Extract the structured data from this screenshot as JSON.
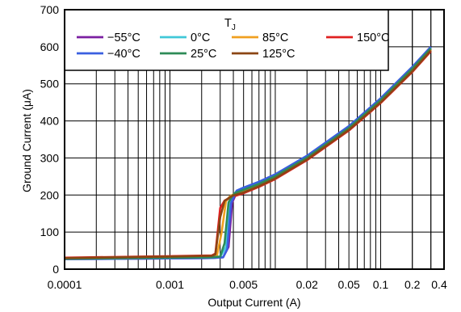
{
  "chart_data": {
    "type": "line",
    "xlabel": "Output Current (A)",
    "ylabel": "Ground Current (μA)",
    "xscale": "log",
    "xlim": [
      0.0001,
      0.4
    ],
    "ylim": [
      0,
      700
    ],
    "x_ticks": [
      {
        "value": 0.0001,
        "label": "0.0001"
      },
      {
        "value": 0.001,
        "label": "0.001"
      },
      {
        "value": 0.005,
        "label": "0.005"
      },
      {
        "value": 0.02,
        "label": "0.02"
      },
      {
        "value": 0.05,
        "label": "0.05"
      },
      {
        "value": 0.1,
        "label": "0.1"
      },
      {
        "value": 0.2,
        "label": "0.2"
      },
      {
        "value": 0.4,
        "label": "0.4"
      }
    ],
    "y_ticks": [
      {
        "value": 0,
        "label": "0"
      },
      {
        "value": 100,
        "label": "100"
      },
      {
        "value": 200,
        "label": "200"
      },
      {
        "value": 300,
        "label": "300"
      },
      {
        "value": 400,
        "label": "400"
      },
      {
        "value": 500,
        "label": "500"
      },
      {
        "value": 600,
        "label": "600"
      },
      {
        "value": 700,
        "label": "700"
      }
    ],
    "grid": true,
    "legend": {
      "title": "T",
      "title_sub": "J",
      "placement": "top-left-inside"
    },
    "series": [
      {
        "name": "−55°C",
        "color": "#7b1fa2",
        "points": [
          [
            0.0001,
            27
          ],
          [
            0.001,
            29
          ],
          [
            0.0025,
            30
          ],
          [
            0.0032,
            32
          ],
          [
            0.0036,
            60
          ],
          [
            0.0039,
            180
          ],
          [
            0.0042,
            200
          ],
          [
            0.0044,
            210
          ],
          [
            0.005,
            218
          ],
          [
            0.007,
            234
          ],
          [
            0.01,
            255
          ],
          [
            0.02,
            305
          ],
          [
            0.05,
            385
          ],
          [
            0.1,
            460
          ],
          [
            0.2,
            545
          ],
          [
            0.3,
            600
          ]
        ]
      },
      {
        "name": "0°C",
        "color": "#40c8d8",
        "points": [
          [
            0.0001,
            28
          ],
          [
            0.001,
            30
          ],
          [
            0.0025,
            31
          ],
          [
            0.003,
            33
          ],
          [
            0.0034,
            60
          ],
          [
            0.0037,
            180
          ],
          [
            0.004,
            200
          ],
          [
            0.0042,
            208
          ],
          [
            0.005,
            216
          ],
          [
            0.007,
            232
          ],
          [
            0.01,
            253
          ],
          [
            0.02,
            303
          ],
          [
            0.05,
            383
          ],
          [
            0.1,
            458
          ],
          [
            0.2,
            543
          ],
          [
            0.3,
            598
          ]
        ]
      },
      {
        "name": "85°C",
        "color": "#f0a020",
        "points": [
          [
            0.0001,
            30
          ],
          [
            0.001,
            33
          ],
          [
            0.0025,
            35
          ],
          [
            0.0028,
            38
          ],
          [
            0.0031,
            100
          ],
          [
            0.0034,
            183
          ],
          [
            0.0037,
            196
          ],
          [
            0.004,
            202
          ],
          [
            0.005,
            210
          ],
          [
            0.007,
            226
          ],
          [
            0.01,
            247
          ],
          [
            0.02,
            298
          ],
          [
            0.05,
            378
          ],
          [
            0.1,
            452
          ],
          [
            0.2,
            537
          ],
          [
            0.3,
            592
          ]
        ]
      },
      {
        "name": "150°C",
        "color": "#e02020",
        "points": [
          [
            0.0001,
            31
          ],
          [
            0.001,
            35
          ],
          [
            0.0025,
            37
          ],
          [
            0.0027,
            42
          ],
          [
            0.003,
            165
          ],
          [
            0.0033,
            185
          ],
          [
            0.0037,
            192
          ],
          [
            0.004,
            196
          ],
          [
            0.005,
            205
          ],
          [
            0.007,
            222
          ],
          [
            0.01,
            243
          ],
          [
            0.02,
            294
          ],
          [
            0.05,
            374
          ],
          [
            0.1,
            448
          ],
          [
            0.2,
            532
          ],
          [
            0.3,
            588
          ]
        ]
      },
      {
        "name": "−40°C",
        "color": "#3a5fe0",
        "points": [
          [
            0.0001,
            27
          ],
          [
            0.001,
            29
          ],
          [
            0.0025,
            30
          ],
          [
            0.0032,
            32
          ],
          [
            0.0035,
            55
          ],
          [
            0.0038,
            178
          ],
          [
            0.0041,
            200
          ],
          [
            0.0043,
            212
          ],
          [
            0.005,
            220
          ],
          [
            0.007,
            236
          ],
          [
            0.01,
            256
          ],
          [
            0.02,
            306
          ],
          [
            0.05,
            386
          ],
          [
            0.1,
            461
          ],
          [
            0.2,
            546
          ],
          [
            0.3,
            600
          ]
        ]
      },
      {
        "name": "25°C",
        "color": "#2e8b57",
        "points": [
          [
            0.0001,
            28
          ],
          [
            0.001,
            31
          ],
          [
            0.0025,
            32
          ],
          [
            0.003,
            34
          ],
          [
            0.0033,
            70
          ],
          [
            0.0036,
            180
          ],
          [
            0.0039,
            198
          ],
          [
            0.0042,
            206
          ],
          [
            0.005,
            214
          ],
          [
            0.007,
            230
          ],
          [
            0.01,
            251
          ],
          [
            0.02,
            301
          ],
          [
            0.05,
            381
          ],
          [
            0.1,
            456
          ],
          [
            0.2,
            541
          ],
          [
            0.3,
            596
          ]
        ]
      },
      {
        "name": "125°C",
        "color": "#8b4513",
        "points": [
          [
            0.0001,
            30
          ],
          [
            0.001,
            34
          ],
          [
            0.0025,
            36
          ],
          [
            0.0027,
            40
          ],
          [
            0.003,
            140
          ],
          [
            0.0033,
            184
          ],
          [
            0.0037,
            194
          ],
          [
            0.004,
            199
          ],
          [
            0.005,
            207
          ],
          [
            0.007,
            224
          ],
          [
            0.01,
            245
          ],
          [
            0.02,
            296
          ],
          [
            0.05,
            376
          ],
          [
            0.1,
            450
          ],
          [
            0.2,
            534
          ],
          [
            0.3,
            590
          ]
        ]
      }
    ]
  }
}
